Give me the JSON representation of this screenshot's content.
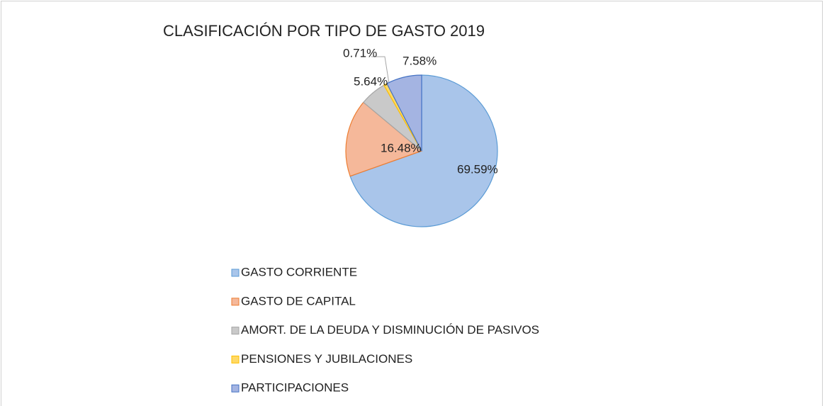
{
  "chart_data": {
    "type": "pie",
    "title": "CLASIFICACIÓN POR TIPO DE GASTO 2019",
    "categories": [
      "GASTO CORRIENTE",
      "GASTO DE CAPITAL",
      "AMORT. DE LA DEUDA Y DISMINUCIÓN DE PASIVOS",
      "PENSIONES Y JUBILACIONES",
      "PARTICIPACIONES"
    ],
    "values": [
      69.59,
      16.48,
      5.64,
      0.71,
      7.58
    ],
    "value_labels": [
      "69.59%",
      "16.48%",
      "5.64%",
      "0.71%",
      "7.58%"
    ],
    "colors": [
      "#a9c5ea",
      "#f5b89a",
      "#c9c9c9",
      "#ffd966",
      "#a4b4e2"
    ],
    "edge_colors": [
      "#5b9bd5",
      "#ed7d31",
      "#a5a5a5",
      "#ffc000",
      "#4472c4"
    ],
    "legend": "bottom"
  }
}
